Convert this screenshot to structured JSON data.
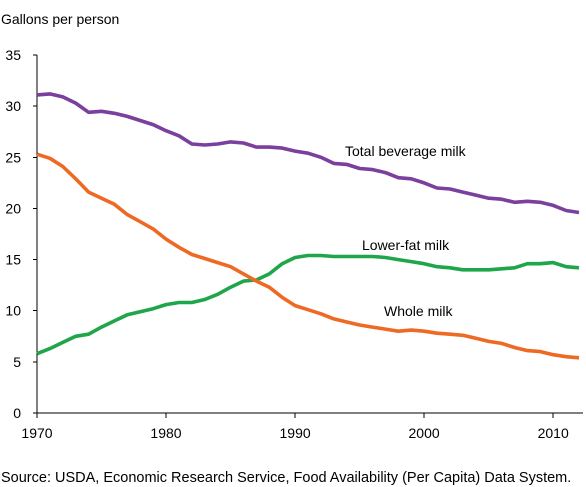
{
  "chart_data": {
    "type": "line",
    "ylabel": "Gallons per person",
    "xlim": [
      1970,
      2012
    ],
    "ylim": [
      0,
      35
    ],
    "xticks": [
      1970,
      1980,
      1990,
      2000,
      2010
    ],
    "yticks": [
      0,
      5,
      10,
      15,
      20,
      25,
      30,
      35
    ],
    "grid": false,
    "x": [
      1970,
      1971,
      1972,
      1973,
      1974,
      1975,
      1976,
      1977,
      1978,
      1979,
      1980,
      1981,
      1982,
      1983,
      1984,
      1985,
      1986,
      1987,
      1988,
      1989,
      1990,
      1991,
      1992,
      1993,
      1994,
      1995,
      1996,
      1997,
      1998,
      1999,
      2000,
      2001,
      2002,
      2003,
      2004,
      2005,
      2006,
      2007,
      2008,
      2009,
      2010,
      2011,
      2012
    ],
    "series": [
      {
        "name": "Total beverage milk",
        "color": "#7B3F9E",
        "values": [
          31.1,
          31.2,
          30.9,
          30.3,
          29.4,
          29.5,
          29.3,
          29.0,
          28.6,
          28.2,
          27.6,
          27.1,
          26.3,
          26.2,
          26.3,
          26.5,
          26.4,
          26.0,
          26.0,
          25.9,
          25.6,
          25.4,
          25.0,
          24.4,
          24.3,
          23.9,
          23.8,
          23.5,
          23.0,
          22.9,
          22.5,
          22.0,
          21.9,
          21.6,
          21.3,
          21.0,
          20.9,
          20.6,
          20.7,
          20.6,
          20.3,
          19.8,
          19.6
        ]
      },
      {
        "name": "Lower-fat milk",
        "color": "#1FA64A",
        "values": [
          5.8,
          6.3,
          6.9,
          7.5,
          7.7,
          8.4,
          9.0,
          9.6,
          9.9,
          10.2,
          10.6,
          10.8,
          10.8,
          11.1,
          11.6,
          12.3,
          12.9,
          13.0,
          13.6,
          14.6,
          15.2,
          15.4,
          15.4,
          15.3,
          15.3,
          15.3,
          15.3,
          15.2,
          15.0,
          14.8,
          14.6,
          14.3,
          14.2,
          14.0,
          14.0,
          14.0,
          14.1,
          14.2,
          14.6,
          14.6,
          14.7,
          14.3,
          14.2
        ]
      },
      {
        "name": "Whole milk",
        "color": "#EE6A24",
        "values": [
          25.3,
          24.9,
          24.1,
          22.9,
          21.6,
          21.0,
          20.4,
          19.4,
          18.7,
          18.0,
          17.0,
          16.2,
          15.5,
          15.1,
          14.7,
          14.3,
          13.6,
          12.9,
          12.3,
          11.3,
          10.5,
          10.1,
          9.7,
          9.2,
          8.9,
          8.6,
          8.4,
          8.2,
          8.0,
          8.1,
          8.0,
          7.8,
          7.7,
          7.6,
          7.3,
          7.0,
          6.8,
          6.4,
          6.1,
          6.0,
          5.7,
          5.5,
          5.4
        ]
      }
    ],
    "source": "Source: USDA, Economic Research Service, Food Availability (Per Capita) Data System."
  }
}
